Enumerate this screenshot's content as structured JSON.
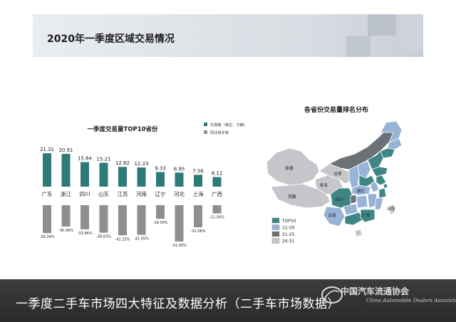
{
  "slide": {
    "title": "2020年一季度区域交易情况"
  },
  "chart_data": [
    {
      "type": "bar",
      "title": "一季度交易量TOP10省份",
      "categories": [
        "广东",
        "浙江",
        "四川",
        "山东",
        "江苏",
        "河南",
        "辽宁",
        "河北",
        "上海",
        "广西"
      ],
      "series": [
        {
          "name": "交易量（单位：万辆）",
          "values": [
            21.31,
            20.91,
            15.64,
            15.21,
            12.62,
            12.23,
            9.33,
            8.95,
            7.56,
            6.12
          ],
          "labels": [
            "21.31",
            "20.91",
            "15.64",
            "15.21",
            "12.62",
            "12.23",
            "9.33",
            "8.95",
            "7.56",
            "6.12"
          ],
          "color": "#2e7a78"
        },
        {
          "name": "同比增长率",
          "values": [
            -39.24,
            -30.06,
            -33.86,
            -38.63,
            -42.25,
            -41.65,
            -19.09,
            -51.0,
            -31.06,
            -11.56
          ],
          "labels": [
            "-39.24%",
            "-30.06%",
            "-33.86%",
            "-38.63%",
            "-42.25%",
            "-41.65%",
            "-19.09%",
            "-51.00%",
            "-31.06%",
            "-11.56%"
          ],
          "color": "#8f8f8f"
        }
      ],
      "ylim": [
        -55,
        22
      ],
      "legend": "top-right",
      "grid": false
    },
    {
      "type": "heatmap",
      "title": "各省份交易量排名分布",
      "legend": [
        {
          "label": "TOP10",
          "color": "#3e8584"
        },
        {
          "label": "11-20",
          "color": "#97b3d6"
        },
        {
          "label": "21-25",
          "color": "#6c7077"
        },
        {
          "label": "26-31",
          "color": "#c4c6c9"
        }
      ],
      "map_labels": [
        "新疆",
        "西藏",
        "青海",
        "甘肃",
        "四川",
        "云南",
        "湖北",
        "广东",
        "台湾"
      ]
    }
  ],
  "caption": {
    "text": "一季度二手车市场四大特征及数据分析（二手车市场数据）"
  },
  "logo": {
    "cn": "中国汽车流通协会",
    "en": "China Automobile Dealers Association"
  },
  "icons": {
    "logo": "car-association-logo-icon"
  }
}
